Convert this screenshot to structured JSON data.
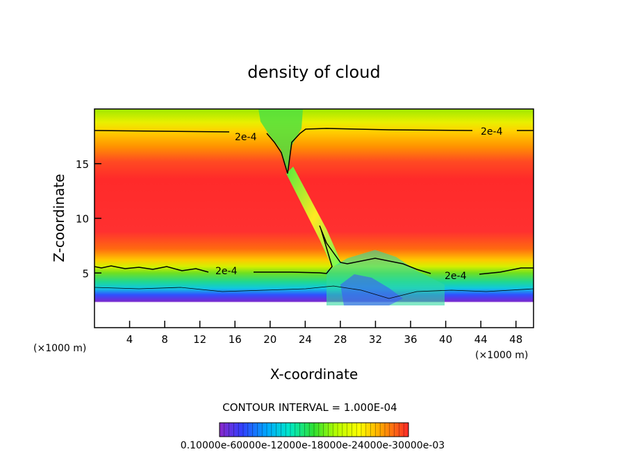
{
  "chart_data": {
    "type": "heatmap",
    "title": "density of cloud",
    "xlabel": "X-coordinate",
    "ylabel": "Z-coordinate",
    "x_unit_left": "(×1000 m)",
    "x_unit_right": "(×1000 m)",
    "xlim": [
      0,
      50
    ],
    "ylim": [
      0,
      20
    ],
    "xticks": [
      4,
      8,
      12,
      16,
      20,
      24,
      28,
      32,
      36,
      40,
      44,
      48
    ],
    "xtick_labels": [
      "4",
      "8",
      "12",
      "16",
      "20",
      "24",
      "28",
      "32",
      "36",
      "40",
      "44",
      "48"
    ],
    "yticks": [
      5,
      10,
      15
    ],
    "ytick_labels": [
      "5",
      "10",
      "15"
    ],
    "contour_interval_text": "CONTOUR INTERVAL = 1.000E-04",
    "contour_labels": [
      {
        "text": "2e-4",
        "x": 17.5,
        "y": 17.2
      },
      {
        "text": "2e-4",
        "x": 45.5,
        "y": 17.9
      },
      {
        "text": "2e-4",
        "x": 15.2,
        "y": 5.3
      },
      {
        "text": "2e-4",
        "x": 42.0,
        "y": 4.7
      }
    ],
    "colorbar_labels": [
      "0.10000e-60000e-12000e-18000e-24000e-30000e-03"
    ],
    "colorbar_range": [
      0.0001,
      0.0003
    ],
    "grid": false
  },
  "colors": {
    "background": "#ffffff",
    "contour": "#000000",
    "colormap": [
      "#8a28c8",
      "#3040ff",
      "#00a8ff",
      "#00e8c8",
      "#30e030",
      "#b8ff00",
      "#ffff00",
      "#ffb800",
      "#ff6000",
      "#ff2828"
    ]
  }
}
